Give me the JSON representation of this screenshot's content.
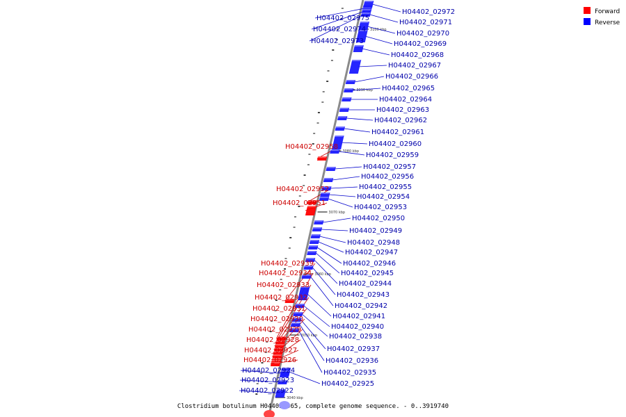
{
  "caption": "Clostridium botulinum H04402 065, complete genome sequence. - 0..3919740",
  "legend": [
    {
      "label": "Forward",
      "color": "#ff0000"
    },
    {
      "label": "Reverse",
      "color": "#0000ff"
    }
  ],
  "colors": {
    "forward": "#ff0000",
    "reverse": "#1a1aff",
    "forward_label": "#cc0000",
    "reverse_label": "#0000aa",
    "backbone": "#888888"
  },
  "ticks": [
    "3100 kbp",
    "3090 kbp",
    "3080 kbp",
    "3070 kbp",
    "3060 kbp",
    "3050 kbp",
    "3040 kbp"
  ],
  "genes": [
    {
      "id": "H04402_02975",
      "strand": "reverse"
    },
    {
      "id": "H04402_02974",
      "strand": "reverse"
    },
    {
      "id": "H04402_02973",
      "strand": "reverse"
    },
    {
      "id": "H04402_02972",
      "strand": "reverse"
    },
    {
      "id": "H04402_02971",
      "strand": "reverse"
    },
    {
      "id": "H04402_02970",
      "strand": "reverse"
    },
    {
      "id": "H04402_02969",
      "strand": "reverse"
    },
    {
      "id": "H04402_02968",
      "strand": "reverse"
    },
    {
      "id": "H04402_02967",
      "strand": "reverse"
    },
    {
      "id": "H04402_02966",
      "strand": "reverse"
    },
    {
      "id": "H04402_02965",
      "strand": "reverse"
    },
    {
      "id": "H04402_02964",
      "strand": "reverse"
    },
    {
      "id": "H04402_02963",
      "strand": "reverse"
    },
    {
      "id": "H04402_02962",
      "strand": "reverse"
    },
    {
      "id": "H04402_02961",
      "strand": "reverse"
    },
    {
      "id": "H04402_02960",
      "strand": "reverse"
    },
    {
      "id": "H04402_02959",
      "strand": "reverse"
    },
    {
      "id": "H04402_02958",
      "strand": "forward"
    },
    {
      "id": "H04402_02957",
      "strand": "reverse"
    },
    {
      "id": "H04402_02956",
      "strand": "reverse"
    },
    {
      "id": "H04402_02955",
      "strand": "reverse"
    },
    {
      "id": "H04402_02954",
      "strand": "reverse"
    },
    {
      "id": "H04402_02953",
      "strand": "reverse"
    },
    {
      "id": "H04402_02952",
      "strand": "forward"
    },
    {
      "id": "H04402_02951",
      "strand": "forward"
    },
    {
      "id": "H04402_02950",
      "strand": "reverse"
    },
    {
      "id": "H04402_02949",
      "strand": "reverse"
    },
    {
      "id": "H04402_02948",
      "strand": "reverse"
    },
    {
      "id": "H04402_02947",
      "strand": "reverse"
    },
    {
      "id": "H04402_02946",
      "strand": "reverse"
    },
    {
      "id": "H04402_02945",
      "strand": "reverse"
    },
    {
      "id": "H04402_02944",
      "strand": "reverse"
    },
    {
      "id": "H04402_02943",
      "strand": "reverse"
    },
    {
      "id": "H04402_02942",
      "strand": "reverse"
    },
    {
      "id": "H04402_02941",
      "strand": "reverse"
    },
    {
      "id": "H04402_02940",
      "strand": "reverse"
    },
    {
      "id": "H04402_02939",
      "strand": "forward"
    },
    {
      "id": "H04402_02938",
      "strand": "reverse"
    },
    {
      "id": "H04402_02937",
      "strand": "reverse"
    },
    {
      "id": "H04402_02936",
      "strand": "reverse"
    },
    {
      "id": "H04402_02935",
      "strand": "reverse"
    },
    {
      "id": "H04402_02934",
      "strand": "forward"
    },
    {
      "id": "H04402_02933",
      "strand": "forward"
    },
    {
      "id": "H04402_02932",
      "strand": "forward"
    },
    {
      "id": "H04402_02931",
      "strand": "forward"
    },
    {
      "id": "H04402_02930",
      "strand": "forward"
    },
    {
      "id": "H04402_02929",
      "strand": "forward"
    },
    {
      "id": "H04402_02928",
      "strand": "forward"
    },
    {
      "id": "H04402_02927",
      "strand": "forward"
    },
    {
      "id": "H04402_02926",
      "strand": "forward"
    },
    {
      "id": "H04402_02925",
      "strand": "reverse"
    },
    {
      "id": "H04402_02924",
      "strand": "reverse"
    },
    {
      "id": "H04402_02923",
      "strand": "reverse"
    },
    {
      "id": "H04402_02922",
      "strand": "reverse"
    }
  ]
}
